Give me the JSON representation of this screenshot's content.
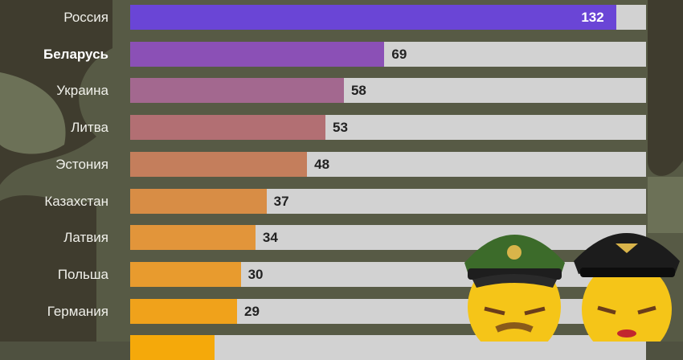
{
  "chart_data": {
    "type": "bar",
    "orientation": "horizontal",
    "xlim": [
      0,
      140
    ],
    "highlight": "Беларусь",
    "categories": [
      "Россия",
      "Беларусь",
      "Украина",
      "Литва",
      "Эстония",
      "Казахстан",
      "Латвия",
      "Польша",
      "Германия",
      ""
    ],
    "values": [
      132,
      69,
      58,
      53,
      48,
      37,
      34,
      30,
      29,
      23
    ],
    "value_labels": [
      "132",
      "69",
      "58",
      "53",
      "48",
      "37",
      "34",
      "30",
      "29",
      ""
    ],
    "colors": [
      "#6a45d6",
      "#8b50b6",
      "#a3688f",
      "#b26f73",
      "#c47e5c",
      "#d88d45",
      "#e2953a",
      "#e89b2e",
      "#f0a21b",
      "#f5a90a"
    ]
  }
}
